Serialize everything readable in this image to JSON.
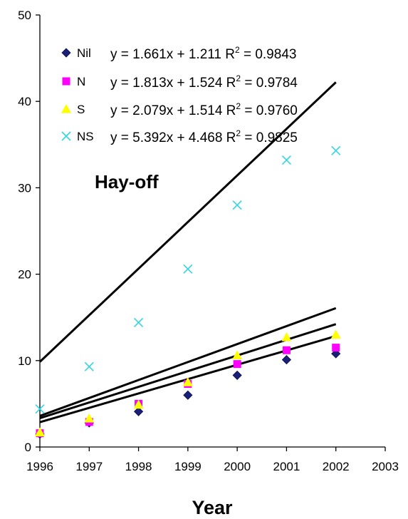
{
  "chart_data": {
    "type": "scatter",
    "title": "",
    "xlabel": "Year",
    "ylabel": "",
    "xlim": [
      1996,
      2003
    ],
    "ylim": [
      0,
      50
    ],
    "x_ticks": [
      "1996",
      "1997",
      "1998",
      "1999",
      "2000",
      "2001",
      "2002",
      "2003"
    ],
    "y_ticks": [
      "0",
      "10",
      "20",
      "30",
      "40",
      "50"
    ],
    "grid": false,
    "legend_position": "top-left",
    "annotation": "Hay-off",
    "series": [
      {
        "name": "Nil",
        "marker": "diamond",
        "color": "#1a1f7a",
        "x": [
          1996,
          1997,
          1998,
          1999,
          2000,
          2001,
          2002
        ],
        "y": [
          1.5,
          2.8,
          4.1,
          6.0,
          8.3,
          10.1,
          10.8
        ],
        "trendline": {
          "slope": 1.661,
          "intercept": 1.211
        },
        "equation_prefix": "y = 1.661x + 1.211 R",
        "equation_sup": "2",
        "equation_suffix": " = 0.9843"
      },
      {
        "name": "N",
        "marker": "square",
        "color": "#ff00ff",
        "x": [
          1996,
          1997,
          1998,
          1999,
          2000,
          2001,
          2002
        ],
        "y": [
          1.6,
          2.9,
          5.0,
          7.3,
          9.6,
          11.2,
          11.5
        ],
        "trendline": {
          "slope": 1.813,
          "intercept": 1.524
        },
        "equation_prefix": "y = 1.813x + 1.524 R",
        "equation_sup": "2",
        "equation_suffix": " = 0.9784"
      },
      {
        "name": "S",
        "marker": "triangle",
        "color": "#ffff00",
        "x": [
          1996,
          1997,
          1998,
          1999,
          2000,
          2001,
          2002
        ],
        "y": [
          1.7,
          3.3,
          4.9,
          7.5,
          10.6,
          12.7,
          13.0
        ],
        "trendline": {
          "slope": 2.079,
          "intercept": 1.514
        },
        "equation_prefix": "y = 2.079x + 1.514 R",
        "equation_sup": "2",
        "equation_suffix": " = 0.9760"
      },
      {
        "name": "NS",
        "marker": "x",
        "color": "#33d6e0",
        "x": [
          1996,
          1997,
          1998,
          1999,
          2000,
          2001,
          2002
        ],
        "y": [
          4.4,
          9.3,
          14.4,
          20.6,
          28.0,
          33.2,
          34.3
        ],
        "trendline": {
          "slope": 5.392,
          "intercept": 4.468
        },
        "equation_prefix": "y = 5.392x + 4.468 R",
        "equation_sup": "2",
        "equation_suffix": " = 0.9825"
      }
    ]
  }
}
